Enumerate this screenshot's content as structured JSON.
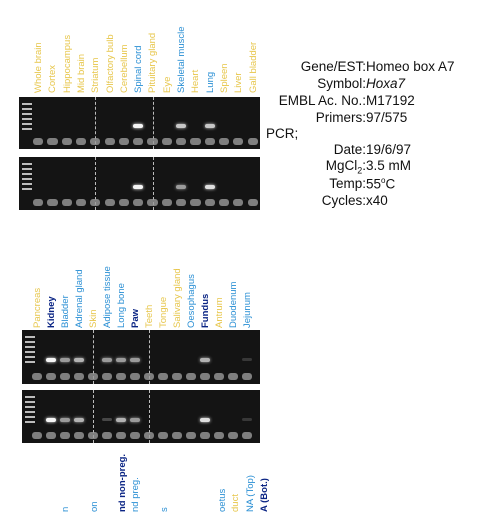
{
  "colors": {
    "yellow": "#e7c64a",
    "blue": "#2a8fd4",
    "navy": "#0a2484",
    "gel_bg": "#141414"
  },
  "top_lanes": [
    {
      "label": "Whole brain",
      "color": "yellow"
    },
    {
      "label": "Cortex",
      "color": "yellow"
    },
    {
      "label": "Hippocampus",
      "color": "yellow"
    },
    {
      "label": "Mid brain",
      "color": "yellow"
    },
    {
      "label": "Striatum",
      "color": "yellow"
    },
    {
      "label": "Olfactory bulb",
      "color": "yellow"
    },
    {
      "label": "Cerebellum",
      "color": "yellow"
    },
    {
      "label": "Spinal cord",
      "color": "blue"
    },
    {
      "label": "Pituitary gland",
      "color": "yellow"
    },
    {
      "label": "Eye",
      "color": "yellow"
    },
    {
      "label": "Skeletal muscle",
      "color": "blue"
    },
    {
      "label": "Heart",
      "color": "yellow"
    },
    {
      "label": "Lung",
      "color": "blue"
    },
    {
      "label": "Spleen",
      "color": "yellow"
    },
    {
      "label": "Liver",
      "color": "yellow"
    },
    {
      "label": "Gall bladder",
      "color": "yellow"
    }
  ],
  "bottom_lanes": [
    {
      "label": "Pancreas",
      "color": "yellow"
    },
    {
      "label": "Kidney",
      "color": "navy"
    },
    {
      "label": "Bladder",
      "color": "blue"
    },
    {
      "label": "Adrenal gland",
      "color": "blue"
    },
    {
      "label": "Skin",
      "color": "yellow"
    },
    {
      "label": "Adipose tissue",
      "color": "blue"
    },
    {
      "label": "Long bone",
      "color": "blue"
    },
    {
      "label": "Paw",
      "color": "navy"
    },
    {
      "label": "Teeth",
      "color": "yellow"
    },
    {
      "label": "Tongue",
      "color": "yellow"
    },
    {
      "label": "Salivary gland",
      "color": "yellow"
    },
    {
      "label": "Oesophagus",
      "color": "blue"
    },
    {
      "label": "Fundus",
      "color": "navy"
    },
    {
      "label": "Antrum",
      "color": "yellow"
    },
    {
      "label": "Duodenum",
      "color": "blue"
    },
    {
      "label": "Jejunum",
      "color": "blue"
    }
  ],
  "partial_lanes": [
    {
      "label": "n",
      "color": "blue"
    },
    {
      "label": "on",
      "color": "blue"
    },
    {
      "label": "nd non-preg.",
      "color": "navy"
    },
    {
      "label": "nd preg.",
      "color": "blue"
    },
    {
      "label": "s",
      "color": "blue"
    },
    {
      "label": "oetus",
      "color": "blue"
    },
    {
      "label": "duct",
      "color": "yellow"
    },
    {
      "label": "NA (Top)",
      "color": "blue"
    },
    {
      "label": "A (Bot.)",
      "color": "navy"
    }
  ],
  "gel_top": {
    "row1_bands": [
      {
        "lane": 7,
        "level": 1.0
      },
      {
        "lane": 10,
        "level": 0.8
      },
      {
        "lane": 12,
        "level": 0.8
      }
    ],
    "row2_bands": [
      {
        "lane": 7,
        "level": 1.0
      },
      {
        "lane": 10,
        "level": 0.6
      },
      {
        "lane": 12,
        "level": 0.9
      }
    ]
  },
  "gel_bottom": {
    "row1_bands": [
      {
        "lane": 1,
        "level": 1.0
      },
      {
        "lane": 2,
        "level": 0.6
      },
      {
        "lane": 3,
        "level": 0.7
      },
      {
        "lane": 5,
        "level": 0.6
      },
      {
        "lane": 6,
        "level": 0.6
      },
      {
        "lane": 7,
        "level": 0.6
      },
      {
        "lane": 12,
        "level": 0.7
      },
      {
        "lane": 15,
        "level": 0.3
      }
    ],
    "row2_bands": [
      {
        "lane": 1,
        "level": 1.0
      },
      {
        "lane": 2,
        "level": 0.6
      },
      {
        "lane": 3,
        "level": 0.7
      },
      {
        "lane": 5,
        "level": 0.5
      },
      {
        "lane": 6,
        "level": 0.7
      },
      {
        "lane": 7,
        "level": 0.6
      },
      {
        "lane": 12,
        "level": 0.9
      },
      {
        "lane": 15,
        "level": 0.3
      }
    ]
  },
  "info": {
    "gene_label": "Gene/EST:",
    "gene_value": "Homeo box A7",
    "symbol_label": "Symbol:",
    "symbol_value": "Hoxa7",
    "embl_label": "EMBL Ac. No.:",
    "embl_value": "M17192",
    "primers_label": "Primers:",
    "primers_value": "97/575",
    "pcr_label": "PCR;",
    "date_label": "Date:",
    "date_value": "19/6/97",
    "mgcl2_label_main": "MgCl",
    "mgcl2_label_sub": "2",
    "mgcl2_value": "3.5 mM",
    "temp_label": "Temp:",
    "temp_value_num": "55",
    "temp_value_sup": "o",
    "temp_value_unit": "C",
    "cycles_label": "Cycles:",
    "cycles_value": "x40"
  }
}
